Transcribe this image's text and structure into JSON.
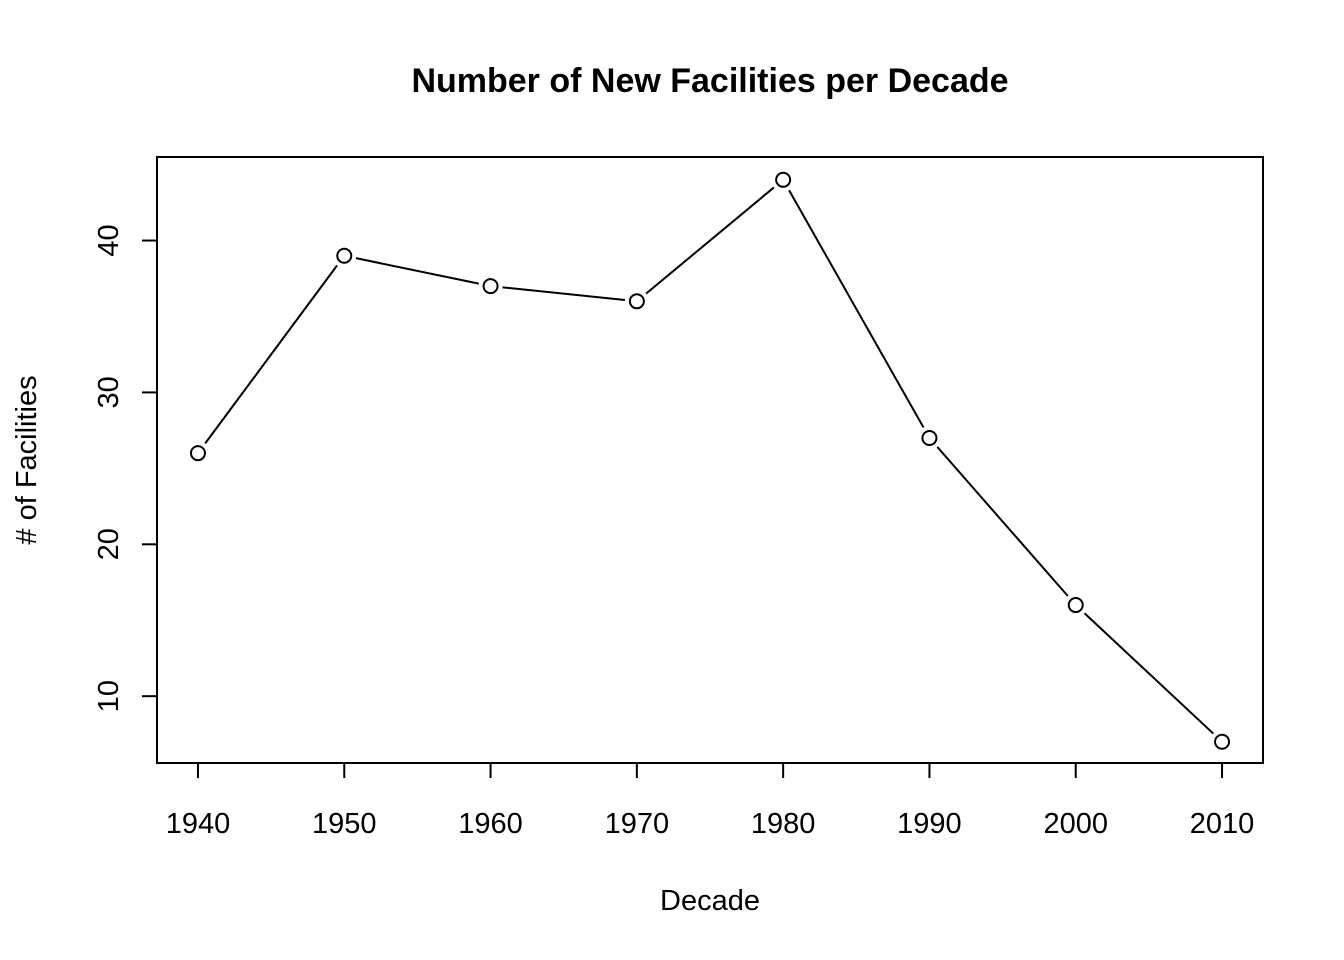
{
  "chart_data": {
    "type": "line",
    "title": "Number of New Facilities per Decade",
    "xlabel": "Decade",
    "ylabel": "# of Facilities",
    "x": [
      1940,
      1950,
      1960,
      1970,
      1980,
      1990,
      2000,
      2010
    ],
    "x_tick_labels": [
      "1940",
      "1950",
      "1960",
      "1970",
      "1980",
      "1990",
      "2000",
      "2010"
    ],
    "y_ticks": [
      10,
      20,
      30,
      40
    ],
    "y_tick_labels": [
      "10",
      "20",
      "30",
      "40"
    ],
    "series": [
      {
        "values": [
          26,
          39,
          37,
          36,
          44,
          27,
          16,
          7
        ]
      }
    ],
    "xlim": [
      1937.2,
      2012.8
    ],
    "ylim": [
      5.6,
      45.5
    ],
    "grid": false,
    "marker": "open-circle"
  }
}
